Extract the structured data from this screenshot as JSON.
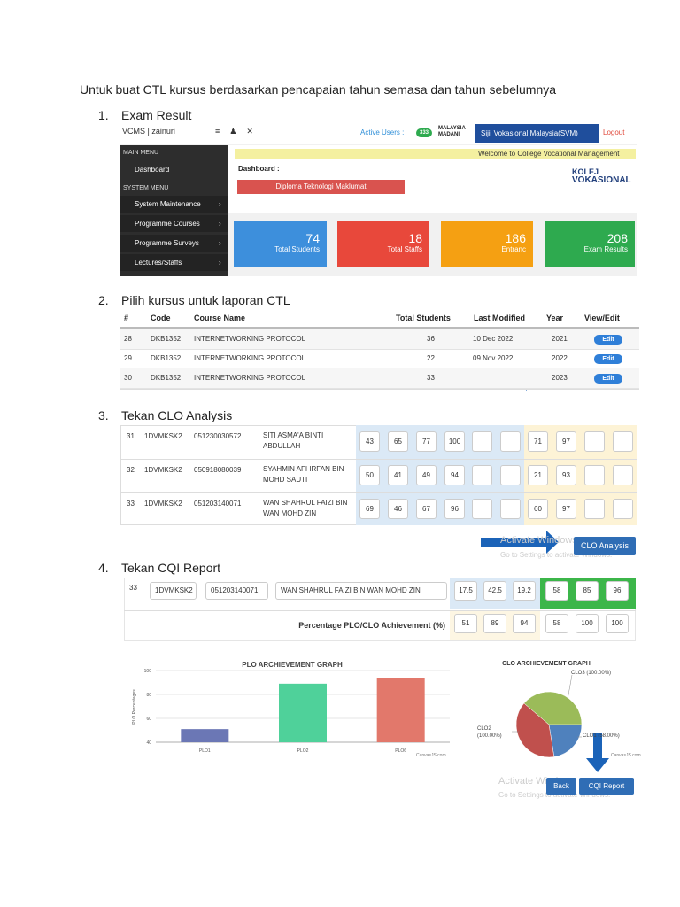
{
  "heading": "Untuk buat CTL kursus berdasarkan pencapaian tahun semasa dan tahun sebelumnya",
  "steps": [
    {
      "number": "1.",
      "title": "Exam Result"
    },
    {
      "number": "2.",
      "title": "Pilih kursus untuk laporan CTL"
    },
    {
      "number": "3.",
      "title": "Tekan CLO Analysis"
    },
    {
      "number": "4.",
      "title": "Tekan CQI Report"
    }
  ],
  "dashboard": {
    "brand": "VCMS | zainuri",
    "active_users": "Active Users :",
    "active_count": "333",
    "madani": "MALAYSIA MADANI",
    "svm": "Sijil Vokasional Malaysia(SVM)",
    "logout": "Logout",
    "main_menu_header": "MAIN MENU",
    "main_menu": [
      "Dashboard"
    ],
    "system_menu_header": "SYSTEM MENU",
    "system_menu": [
      "System Maintenance",
      "Programme Courses",
      "Programme Surveys",
      "Lectures/Staffs"
    ],
    "welcome": "Welcome to College Vocational Management",
    "breadcrumb": "Dashboard :",
    "programme": "Diploma Teknologi Maklumat",
    "logo_line1": "KOLEJ",
    "logo_line2": "VOKASIONAL",
    "cards": [
      {
        "value": 74,
        "label": "Total Students",
        "color": "#3d8fdc"
      },
      {
        "value": 18,
        "label": "Total Staffs",
        "color": "#e8483b"
      },
      {
        "value": 186,
        "label": "Entranc",
        "color": "#f5a012"
      },
      {
        "value": 208,
        "label": "Exam Results",
        "color": "#2eaa4f"
      }
    ]
  },
  "courses": {
    "columns": [
      "#",
      "Code",
      "Course Name",
      "Total Students",
      "Last Modified",
      "Year",
      "View/Edit"
    ],
    "rows": [
      [
        "28",
        "DKB1352",
        "INTERNETWORKING PROTOCOL",
        "36",
        "10 Dec 2022",
        "2021",
        "Edit"
      ],
      [
        "29",
        "DKB1352",
        "INTERNETWORKING PROTOCOL",
        "22",
        "09 Nov 2022",
        "2022",
        "Edit"
      ],
      [
        "30",
        "DKB1352",
        "INTERNETWORKING PROTOCOL",
        "33",
        "",
        "2023",
        "Edit"
      ]
    ]
  },
  "clo": {
    "rows": [
      {
        "no": "31",
        "class": "1DVMKSK2",
        "ic": "051230030572",
        "name": "SITI ASMA'A BINTI ABDULLAH",
        "plo": [
          43,
          65,
          77,
          100
        ],
        "clo": [
          71,
          97
        ]
      },
      {
        "no": "32",
        "class": "1DVMKSK2",
        "ic": "050918080039",
        "name": "SYAHMIN AFI IRFAN BIN MOHD SAUTI",
        "plo": [
          50,
          41,
          49,
          94
        ],
        "clo": [
          21,
          93
        ]
      },
      {
        "no": "33",
        "class": "1DVMKSK2",
        "ic": "051203140071",
        "name": "WAN SHAHRUL FAIZI BIN WAN MOHD ZIN",
        "plo": [
          69,
          46,
          67,
          96
        ],
        "clo": [
          60,
          97
        ]
      }
    ],
    "button": "CLO Analysis",
    "watermark_title": "Activate Windows",
    "watermark_note": "Go to Settings to activate Windows."
  },
  "cqi": {
    "row": {
      "no": "33",
      "class": "1DVMKSK2",
      "ic": "051203140071",
      "name": "WAN SHAHRUL FAIZI BIN WAN MOHD ZIN",
      "scores": [
        17.5,
        42.5,
        19.2
      ],
      "achievements": [
        58,
        85,
        96
      ]
    },
    "percentage_label": "Percentage PLO/CLO Achievement (%)",
    "percentages": [
      51,
      89,
      94,
      58,
      100,
      100
    ],
    "plo_chart": {
      "title": "PLO ARCHIEVEMENT GRAPH",
      "y_label": "PLO Percentages",
      "categories": [
        "PLO1",
        "PLO2",
        "PLO6"
      ],
      "values": [
        51,
        89,
        94
      ],
      "colors": [
        "#6b77b5",
        "#4fd19a",
        "#e2786b"
      ],
      "ylim": [
        40,
        100
      ],
      "yticks": [
        40,
        60,
        80,
        100
      ],
      "credit": "CanvasJS.com"
    },
    "clo_chart": {
      "title": "CLO ARCHIEVEMENT GRAPH",
      "labels": [
        "CLO1 (58.00%)",
        "CLO2 (100.00%)",
        "CLO3 (100.00%)"
      ],
      "values": [
        58,
        100,
        100
      ],
      "colors": [
        "#4f81bd",
        "#c0504d",
        "#9bbb59"
      ]
    },
    "buttons": [
      "Back",
      "CQI Report"
    ]
  }
}
